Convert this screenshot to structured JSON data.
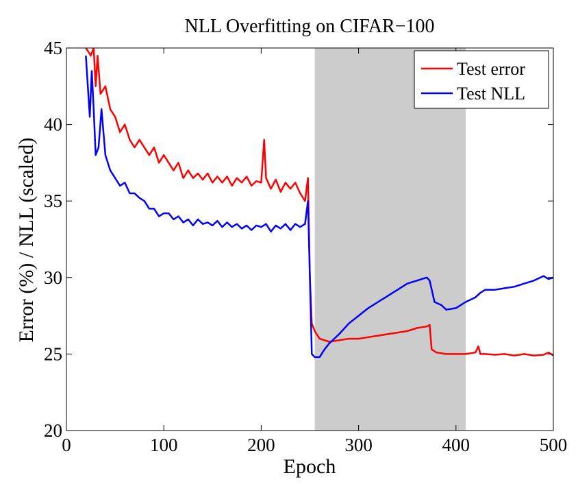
{
  "chart_data": {
    "type": "line",
    "title": "NLL Overfitting on CIFAR−100",
    "xlabel": "Epoch",
    "ylabel": "Error (%) / NLL (scaled)",
    "xlim": [
      0,
      500
    ],
    "ylim": [
      20,
      45
    ],
    "xticks": [
      "0",
      "100",
      "200",
      "300",
      "400",
      "500"
    ],
    "yticks": [
      "20",
      "25",
      "30",
      "35",
      "40",
      "45"
    ],
    "grid": false,
    "legend_position": "top-right",
    "shaded_region": {
      "x_start": 255,
      "x_end": 410,
      "color": "#cccccc"
    },
    "series": [
      {
        "name": "Test error",
        "color": "#ff0000",
        "points": [
          [
            20,
            45
          ],
          [
            25,
            44.5
          ],
          [
            28,
            45
          ],
          [
            30,
            42.5
          ],
          [
            32,
            44.5
          ],
          [
            35,
            42
          ],
          [
            40,
            42.5
          ],
          [
            45,
            41
          ],
          [
            50,
            40.5
          ],
          [
            55,
            39.5
          ],
          [
            60,
            40
          ],
          [
            65,
            39
          ],
          [
            70,
            38.5
          ],
          [
            75,
            39
          ],
          [
            80,
            38.5
          ],
          [
            85,
            38
          ],
          [
            90,
            38.5
          ],
          [
            95,
            37.5
          ],
          [
            100,
            38
          ],
          [
            105,
            37.5
          ],
          [
            110,
            37
          ],
          [
            115,
            37.5
          ],
          [
            120,
            36.5
          ],
          [
            125,
            37
          ],
          [
            130,
            36.5
          ],
          [
            135,
            36.8
          ],
          [
            140,
            36.4
          ],
          [
            145,
            36.8
          ],
          [
            150,
            36.2
          ],
          [
            155,
            36.6
          ],
          [
            160,
            36.2
          ],
          [
            165,
            36.6
          ],
          [
            170,
            36
          ],
          [
            175,
            36.5
          ],
          [
            180,
            36.2
          ],
          [
            185,
            36.6
          ],
          [
            190,
            36
          ],
          [
            195,
            36.3
          ],
          [
            200,
            36.2
          ],
          [
            203,
            39
          ],
          [
            205,
            36.5
          ],
          [
            210,
            35.8
          ],
          [
            215,
            36.4
          ],
          [
            220,
            35.6
          ],
          [
            225,
            36.2
          ],
          [
            230,
            35.8
          ],
          [
            235,
            36.2
          ],
          [
            240,
            35.5
          ],
          [
            245,
            35
          ],
          [
            248,
            36.5
          ],
          [
            250,
            30
          ],
          [
            252,
            27
          ],
          [
            255,
            26.5
          ],
          [
            260,
            26
          ],
          [
            270,
            25.8
          ],
          [
            280,
            25.9
          ],
          [
            290,
            26
          ],
          [
            300,
            26
          ],
          [
            310,
            26.1
          ],
          [
            320,
            26.2
          ],
          [
            330,
            26.3
          ],
          [
            340,
            26.4
          ],
          [
            350,
            26.5
          ],
          [
            360,
            26.7
          ],
          [
            370,
            26.8
          ],
          [
            373,
            26.9
          ],
          [
            375,
            25.3
          ],
          [
            380,
            25.1
          ],
          [
            390,
            25
          ],
          [
            400,
            25
          ],
          [
            410,
            25
          ],
          [
            420,
            25.1
          ],
          [
            423,
            25.5
          ],
          [
            425,
            25
          ],
          [
            430,
            25
          ],
          [
            440,
            24.95
          ],
          [
            450,
            25
          ],
          [
            460,
            24.9
          ],
          [
            470,
            25
          ],
          [
            480,
            24.9
          ],
          [
            490,
            24.95
          ],
          [
            495,
            25.1
          ],
          [
            500,
            24.9
          ]
        ]
      },
      {
        "name": "Test NLL",
        "color": "#0000ff",
        "points": [
          [
            20,
            44.5
          ],
          [
            24,
            40.5
          ],
          [
            26,
            43.5
          ],
          [
            28,
            41
          ],
          [
            30,
            38
          ],
          [
            33,
            38.5
          ],
          [
            36,
            41
          ],
          [
            40,
            38
          ],
          [
            45,
            37
          ],
          [
            50,
            36.5
          ],
          [
            55,
            36
          ],
          [
            60,
            36.2
          ],
          [
            65,
            35.5
          ],
          [
            70,
            35.5
          ],
          [
            75,
            35.2
          ],
          [
            80,
            35
          ],
          [
            85,
            34.5
          ],
          [
            90,
            34.5
          ],
          [
            95,
            34
          ],
          [
            100,
            34.2
          ],
          [
            105,
            34.2
          ],
          [
            110,
            33.8
          ],
          [
            115,
            34
          ],
          [
            120,
            33.6
          ],
          [
            125,
            33.8
          ],
          [
            130,
            33.4
          ],
          [
            135,
            33.8
          ],
          [
            140,
            33.5
          ],
          [
            145,
            33.6
          ],
          [
            150,
            33.4
          ],
          [
            155,
            33.7
          ],
          [
            160,
            33.3
          ],
          [
            165,
            33.6
          ],
          [
            170,
            33.3
          ],
          [
            175,
            33.5
          ],
          [
            180,
            33.2
          ],
          [
            185,
            33.4
          ],
          [
            190,
            33.1
          ],
          [
            195,
            33.4
          ],
          [
            200,
            33.3
          ],
          [
            205,
            33.5
          ],
          [
            210,
            33
          ],
          [
            215,
            33.4
          ],
          [
            220,
            33.2
          ],
          [
            225,
            33.5
          ],
          [
            230,
            33.1
          ],
          [
            235,
            33.5
          ],
          [
            240,
            33.3
          ],
          [
            245,
            33.5
          ],
          [
            248,
            35
          ],
          [
            250,
            30
          ],
          [
            252,
            25
          ],
          [
            255,
            24.8
          ],
          [
            260,
            24.8
          ],
          [
            265,
            25.3
          ],
          [
            270,
            25.7
          ],
          [
            280,
            26.3
          ],
          [
            290,
            27
          ],
          [
            300,
            27.5
          ],
          [
            310,
            28
          ],
          [
            320,
            28.4
          ],
          [
            330,
            28.8
          ],
          [
            340,
            29.2
          ],
          [
            350,
            29.6
          ],
          [
            360,
            29.8
          ],
          [
            370,
            30
          ],
          [
            373,
            29.8
          ],
          [
            378,
            28.4
          ],
          [
            385,
            28.2
          ],
          [
            390,
            27.9
          ],
          [
            400,
            28
          ],
          [
            410,
            28.4
          ],
          [
            420,
            28.7
          ],
          [
            425,
            29
          ],
          [
            430,
            29.2
          ],
          [
            440,
            29.2
          ],
          [
            450,
            29.3
          ],
          [
            460,
            29.4
          ],
          [
            470,
            29.6
          ],
          [
            480,
            29.8
          ],
          [
            490,
            30.1
          ],
          [
            495,
            29.9
          ],
          [
            500,
            30
          ]
        ]
      }
    ]
  }
}
